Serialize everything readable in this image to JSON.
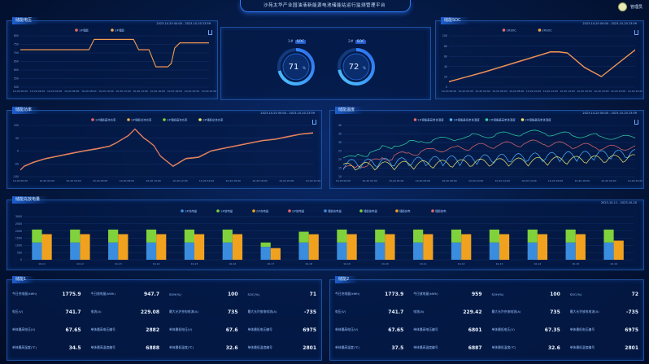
{
  "header": {
    "title": "沙苑太华产业园油液新能源电池储能站运行监测管理平台",
    "user_name": "管理员"
  },
  "panels": {
    "voltage": {
      "title": "储能电压",
      "time": "2023-10-20 00:00 - 2023-10-20 23:59"
    },
    "gauges": {
      "left_label": "1#",
      "left_badge": "SOC",
      "left_value": "71",
      "right_label": "2#",
      "right_badge": "SOC",
      "right_value": "72",
      "unit": "%"
    },
    "soc": {
      "title": "储能SOC",
      "time": "2023-10-20 00:00 - 2023-10-20 23:59"
    },
    "power": {
      "title": "储能功率",
      "time": "2023-10-20 00:00 - 2023-10-20 23:59"
    },
    "temp": {
      "title": "储能温度",
      "time": "2023-10-20 00:00 - 2023-10-20 23:59"
    },
    "energy": {
      "title": "储能充放电量",
      "time": "2023-10-11 - 2023-10-20"
    },
    "stats1": {
      "title": "储能1"
    },
    "stats2": {
      "title": "储能2"
    }
  },
  "chart_data": [
    {
      "type": "line",
      "title": "储能电压",
      "series": [
        {
          "name": "1#储能"
        },
        {
          "name": "2#储能"
        }
      ],
      "ylim": [
        500,
        800
      ],
      "yticks": [
        "800",
        "750",
        "700",
        "650",
        "600",
        "550",
        "500"
      ],
      "xticks": [
        "10-20 00:00",
        "10-20 02:00",
        "10-20 04:00",
        "10-20 06:00",
        "10-20 08:00",
        "10-20 10:00",
        "10-20 12:00",
        "10-20 14:00",
        "10-20 16:00",
        "10-20 18:00",
        "10-20 20:00",
        "10-20 22:00"
      ],
      "x": [
        0,
        1,
        2,
        3,
        4,
        4.3,
        6.6,
        6.9,
        7.5,
        7.9,
        8.1,
        8.6,
        8.8,
        9.0,
        9.3,
        11
      ],
      "values": [
        720,
        720,
        720,
        720,
        720,
        780,
        780,
        720,
        720,
        620,
        620,
        620,
        640,
        730,
        760,
        760
      ],
      "colors": [
        "#e46b6b",
        "#f0a94a"
      ]
    },
    {
      "type": "line",
      "title": "储能SOC",
      "series": [
        {
          "name": "1#SOC"
        },
        {
          "name": "2#SOC"
        }
      ],
      "ylim": [
        0,
        100
      ],
      "yticks": [
        "100",
        "80",
        "60",
        "40",
        "20",
        "0"
      ],
      "xticks": [
        "10-20 00:00",
        "10-20 02:00",
        "10-20 04:00",
        "10-20 06:00",
        "10-20 08:00",
        "10-20 10:00",
        "10-20 12:00",
        "10-20 14:00",
        "10-20 16:00",
        "10-20 18:00",
        "10-20 20:00",
        "10-20 22:00"
      ],
      "x": [
        0,
        1,
        2,
        3,
        4,
        5,
        6,
        6.5,
        7,
        8,
        9,
        10,
        11
      ],
      "values": [
        10,
        19,
        28,
        38,
        48,
        58,
        68,
        68,
        66,
        38,
        20,
        46,
        72
      ],
      "colors": [
        "#e46b6b",
        "#f0a94a"
      ]
    },
    {
      "type": "line",
      "title": "储能功率",
      "series": [
        {
          "name": "1#储能直流功率"
        },
        {
          "name": "1#储能交流功率"
        },
        {
          "name": "2#储能直流功率"
        },
        {
          "name": "2#储能交流功率"
        }
      ],
      "ylim": [
        -100,
        100
      ],
      "yticks": [
        "100",
        "50",
        "0",
        "-50",
        "-100"
      ],
      "xticks": [
        "10-20 00:00",
        "10-20 02:00",
        "10-20 04:00",
        "10-20 06:00",
        "10-20 08:00",
        "10-20 10:00",
        "10-20 12:00",
        "10-20 14:00",
        "10-20 16:00",
        "10-20 18:00",
        "10-20 20:00",
        "10-20 22:00"
      ],
      "x": [
        0,
        0.3,
        1,
        2,
        3,
        4,
        5,
        6,
        7,
        7.5,
        8,
        8.5,
        9,
        9.3,
        9.7,
        10,
        10.5,
        11,
        12,
        13,
        14,
        15,
        16,
        17,
        18,
        19,
        20,
        21,
        22,
        23
      ],
      "values": [
        -75,
        -60,
        -45,
        -30,
        -20,
        -10,
        0,
        8,
        18,
        30,
        45,
        60,
        85,
        70,
        50,
        40,
        20,
        -20,
        -60,
        -30,
        -25,
        0,
        10,
        20,
        30,
        40,
        45,
        55,
        65,
        70
      ],
      "colors": [
        "#e46b6b",
        "#f0a94a",
        "#7fd23b",
        "#e8e86a"
      ]
    },
    {
      "type": "line",
      "title": "储能温度",
      "series": [
        {
          "name": "1#储能最高单体温度"
        },
        {
          "name": "1#储能最低单体温度"
        },
        {
          "name": "2#储能最高单体温度"
        },
        {
          "name": "2#储能最低单体温度"
        }
      ],
      "ylim": [
        10,
        40
      ],
      "yticks": [
        "40",
        "35",
        "30",
        "25",
        "20",
        "15",
        "10"
      ],
      "xticks": [
        "10-20 00:00",
        "10-20 02:00",
        "10-20 04:00",
        "10-20 06:00",
        "10-20 08:00",
        "10-20 10:00",
        "10-20 12:00",
        "10-20 14:00",
        "10-20 16:00",
        "10-20 18:00",
        "10-20 20:00",
        "10-20 22:00"
      ],
      "x": [
        0,
        1,
        2,
        3,
        4,
        5,
        6,
        7,
        8,
        9,
        10,
        11,
        12,
        13,
        14,
        15,
        16,
        17,
        18,
        19,
        20,
        21,
        22,
        23
      ],
      "values": [
        18,
        20,
        22,
        24,
        26,
        27,
        28,
        29,
        29,
        30,
        31,
        31,
        32,
        32,
        33,
        33,
        32,
        32,
        31,
        31,
        30,
        30,
        30,
        30
      ],
      "colors": [
        "#e46b6b",
        "#4fb3ff",
        "#2fd3a5",
        "#e8e86a"
      ]
    },
    {
      "type": "bar",
      "title": "储能充放电量",
      "categories": [
        "10-11",
        "10-12",
        "10-13",
        "10-14",
        "10-15",
        "10-16",
        "10-17",
        "10-18",
        "10-19",
        "10-20",
        "10-11",
        "10-12",
        "10-13",
        "10-14",
        "10-15",
        "10-16"
      ],
      "series": [
        {
          "name": "1#充电量",
          "values": [
            1200,
            1200,
            1200,
            1200,
            1200,
            1200,
            900,
            1200,
            1200,
            1200,
            1200,
            1200,
            1200,
            1200,
            1200,
            1200
          ]
        },
        {
          "name": "1#放电量",
          "values": [
            900,
            900,
            900,
            900,
            900,
            900,
            300,
            750,
            900,
            900,
            900,
            900,
            900,
            900,
            900,
            900
          ]
        },
        {
          "name": "2#充电量",
          "values": [
            1150,
            1150,
            1150,
            1150,
            1150,
            1150,
            600,
            1250,
            1150,
            1150,
            1150,
            1150,
            1150,
            1150,
            1150,
            700
          ]
        },
        {
          "name": "2#放电量",
          "values": [
            0,
            0,
            0,
            0,
            0,
            0,
            0,
            0,
            0,
            0,
            0,
            0,
            0,
            0,
            0,
            0
          ]
        }
      ],
      "legend": [
        "1#充电量",
        "1#放电量",
        "2#充电量",
        "2#放电量",
        "储能充电量",
        "储能放电量",
        "储能充电",
        "储能放电"
      ],
      "colors": [
        "#3a8dde",
        "#7fd23b",
        "#f0a21f",
        "#e46b6b"
      ],
      "ylim": [
        0,
        3000
      ],
      "yticks": [
        "3000",
        "2500",
        "2000",
        "1500",
        "1000",
        "500",
        "0"
      ]
    }
  ],
  "stats1": [
    {
      "k": "今日充电量(kWh)",
      "v": "1775.9",
      "u": ""
    },
    {
      "k": "今日放电量(kWh)",
      "v": "947.7",
      "u": ""
    },
    {
      "k": "SOH(%)",
      "v": "100",
      "u": ""
    },
    {
      "k": "SOC(%)",
      "v": "71",
      "u": ""
    },
    {
      "k": "电压(V)",
      "v": "741.7",
      "u": ""
    },
    {
      "k": "电流(A)",
      "v": "229.08",
      "u": ""
    },
    {
      "k": "最大允许充电电流(A)",
      "v": "735",
      "u": ""
    },
    {
      "k": "最大允许放电电流(A)",
      "v": "-735",
      "u": ""
    },
    {
      "k": "单体最高电压(V)",
      "v": "67.65",
      "u": ""
    },
    {
      "k": "单体最高电压编号",
      "v": "2882",
      "u": ""
    },
    {
      "k": "单体最低电压(V)",
      "v": "67.6",
      "u": ""
    },
    {
      "k": "单体最低电压编号",
      "v": "6975",
      "u": ""
    },
    {
      "k": "单体最高温度(℃)",
      "v": "34.5",
      "u": ""
    },
    {
      "k": "单体最高温度编号",
      "v": "6888",
      "u": ""
    },
    {
      "k": "单体最低温度(℃)",
      "v": "32.6",
      "u": ""
    },
    {
      "k": "单体最低温度编号",
      "v": "2801",
      "u": ""
    }
  ],
  "stats2": [
    {
      "k": "今日充电量(kWh)",
      "v": "1773.9",
      "u": ""
    },
    {
      "k": "今日放电量(kWh)",
      "v": "959",
      "u": ""
    },
    {
      "k": "SOH(%)",
      "v": "100",
      "u": ""
    },
    {
      "k": "SOC(%)",
      "v": "72",
      "u": ""
    },
    {
      "k": "电压(V)",
      "v": "741.7",
      "u": ""
    },
    {
      "k": "电流(A)",
      "v": "229.42",
      "u": ""
    },
    {
      "k": "最大允许充电电流(A)",
      "v": "735",
      "u": ""
    },
    {
      "k": "最大允许放电电流(A)",
      "v": "-735",
      "u": ""
    },
    {
      "k": "单体最高电压(V)",
      "v": "67.65",
      "u": ""
    },
    {
      "k": "单体最高电压编号",
      "v": "6801",
      "u": ""
    },
    {
      "k": "单体最低电压(V)",
      "v": "67.35",
      "u": ""
    },
    {
      "k": "单体最低电压编号",
      "v": "6975",
      "u": ""
    },
    {
      "k": "单体最高温度(℃)",
      "v": "37.5",
      "u": ""
    },
    {
      "k": "单体最高温度编号",
      "v": "6887",
      "u": ""
    },
    {
      "k": "单体最低温度(℃)",
      "v": "32.6",
      "u": ""
    },
    {
      "k": "单体最低温度编号",
      "v": "2801",
      "u": ""
    }
  ]
}
